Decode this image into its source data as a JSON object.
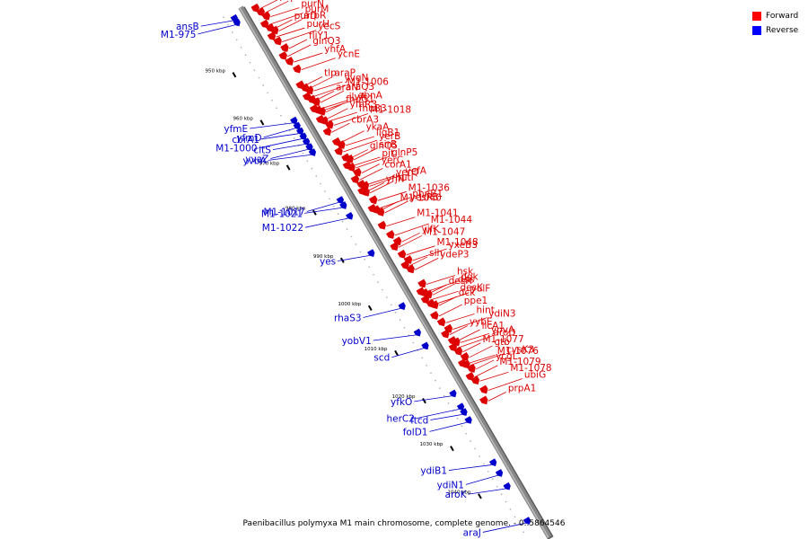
{
  "caption": "Paenibacillus polymyxa M1 main chromosome, complete genome. - 0..5864546",
  "legend": [
    {
      "label": "Forward",
      "color": "#ff0000"
    },
    {
      "label": "Reverse",
      "color": "#0000ff"
    }
  ],
  "colors": {
    "forward": "#dd0000",
    "reverse": "#0000cc",
    "backbone": "#888888"
  },
  "ticks": [
    {
      "label": "950 kbp",
      "t": 0.09
    },
    {
      "label": "960 kbp",
      "t": 0.18
    },
    {
      "label": "970 kbp",
      "t": 0.265
    },
    {
      "label": "980 kbp",
      "t": 0.35
    },
    {
      "label": "990 kbp",
      "t": 0.44
    },
    {
      "label": "1000 kbp",
      "t": 0.53
    },
    {
      "label": "1010 kbp",
      "t": 0.615
    },
    {
      "label": "1020 kbp",
      "t": 0.705
    },
    {
      "label": "1030 kbp",
      "t": 0.795
    },
    {
      "label": "1040 kbp",
      "t": 0.885
    }
  ],
  "forward_genes": [
    {
      "name": "purL",
      "t": 0.015
    },
    {
      "name": "purF",
      "t": 0.025
    },
    {
      "name": "purN",
      "t": 0.035
    },
    {
      "name": "purM",
      "t": 0.045
    },
    {
      "name": "purD",
      "t": 0.055
    },
    {
      "name": "arpR",
      "t": 0.062
    },
    {
      "name": "purH",
      "t": 0.068
    },
    {
      "name": "yecS",
      "t": 0.08
    },
    {
      "name": "fliY1",
      "t": 0.095
    },
    {
      "name": "glnQ3",
      "t": 0.105
    },
    {
      "name": "yhfA",
      "t": 0.118
    },
    {
      "name": "ycnE",
      "t": 0.135
    },
    {
      "name": "tlp",
      "t": 0.16
    },
    {
      "name": "araP",
      "t": 0.168
    },
    {
      "name": "yvgN",
      "t": 0.175
    },
    {
      "name": "M1-1006",
      "t": 0.182
    },
    {
      "name": "araN",
      "t": 0.19
    },
    {
      "name": "araQ3",
      "t": 0.197
    },
    {
      "name": "ilvA",
      "t": 0.205
    },
    {
      "name": "abnA",
      "t": 0.21
    },
    {
      "name": "fhuG1",
      "t": 0.215
    },
    {
      "name": "yfhR3",
      "t": 0.225
    },
    {
      "name": "fhuB3",
      "t": 0.23
    },
    {
      "name": "M1-1018",
      "t": 0.24
    },
    {
      "name": "cbrA3",
      "t": 0.248
    },
    {
      "name": "ykaA",
      "t": 0.27
    },
    {
      "name": "ligB1",
      "t": 0.278
    },
    {
      "name": "yerB",
      "t": 0.285
    },
    {
      "name": "glnQ5",
      "t": 0.3
    },
    {
      "name": "sirB",
      "t": 0.305
    },
    {
      "name": "pit",
      "t": 0.312
    },
    {
      "name": "glnP5",
      "t": 0.318
    },
    {
      "name": "yerC",
      "t": 0.33
    },
    {
      "name": "corA1",
      "t": 0.338
    },
    {
      "name": "yerQ",
      "t": 0.35
    },
    {
      "name": "yefA",
      "t": 0.355
    },
    {
      "name": "yfjN",
      "t": 0.36
    },
    {
      "name": "hutI",
      "t": 0.365
    },
    {
      "name": "M1-1036",
      "t": 0.382
    },
    {
      "name": "phnB1",
      "t": 0.393
    },
    {
      "name": "M1-1040",
      "t": 0.398
    },
    {
      "name": "yesR3",
      "t": 0.405
    },
    {
      "name": "M1-1041",
      "t": 0.425
    },
    {
      "name": "M1-1044",
      "t": 0.445
    },
    {
      "name": "yifK",
      "t": 0.46
    },
    {
      "name": "M1-1047",
      "t": 0.465
    },
    {
      "name": "M1-1048",
      "t": 0.482
    },
    {
      "name": "yxeB3",
      "t": 0.495
    },
    {
      "name": "slh",
      "t": 0.5
    },
    {
      "name": "ydeP3",
      "t": 0.51
    },
    {
      "name": "hsk",
      "t": 0.54
    },
    {
      "name": "dgk",
      "t": 0.55
    },
    {
      "name": "desR",
      "t": 0.555
    },
    {
      "name": "des",
      "t": 0.56
    },
    {
      "name": "desK",
      "t": 0.565
    },
    {
      "name": "yulF",
      "t": 0.575
    },
    {
      "name": "dck",
      "t": 0.58
    },
    {
      "name": "ppe1",
      "t": 0.595
    },
    {
      "name": "hint",
      "t": 0.61
    },
    {
      "name": "ydiN3",
      "t": 0.625
    },
    {
      "name": "yybE",
      "t": 0.63
    },
    {
      "name": "licA1",
      "t": 0.645
    },
    {
      "name": "ypvA",
      "t": 0.65
    },
    {
      "name": "aroD",
      "t": 0.655
    },
    {
      "name": "M1-1077",
      "t": 0.665
    },
    {
      "name": "gtb",
      "t": 0.678
    },
    {
      "name": "M1-1076",
      "t": 0.685
    },
    {
      "name": "cysK3",
      "t": 0.69
    },
    {
      "name": "ycgL",
      "t": 0.7
    },
    {
      "name": "M1-1079",
      "t": 0.71
    },
    {
      "name": "M1-1078",
      "t": 0.72
    },
    {
      "name": "ubiG",
      "t": 0.74
    },
    {
      "name": "prpA1",
      "t": 0.755
    }
  ],
  "reverse_genes": [
    {
      "name": "ansB",
      "t": 0.012
    },
    {
      "name": "M1-975",
      "t": 0.02
    },
    {
      "name": "yfmE",
      "t": 0.205
    },
    {
      "name": "yfmD",
      "t": 0.215
    },
    {
      "name": "cbrA1",
      "t": 0.225
    },
    {
      "name": "M1-1000",
      "t": 0.235
    },
    {
      "name": "citS",
      "t": 0.245
    },
    {
      "name": "yvaZ",
      "t": 0.255
    },
    {
      "name": "yvbA",
      "t": 0.265
    },
    {
      "name": "M1-1017",
      "t": 0.355
    },
    {
      "name": "M1-1021",
      "t": 0.365
    },
    {
      "name": "M1-1022",
      "t": 0.385
    },
    {
      "name": "yes",
      "t": 0.455
    },
    {
      "name": "rhaS3",
      "t": 0.555
    },
    {
      "name": "yobV1",
      "t": 0.605
    },
    {
      "name": "scd",
      "t": 0.63
    },
    {
      "name": "yfkO",
      "t": 0.72
    },
    {
      "name": "herC2",
      "t": 0.745
    },
    {
      "name": "ftcd",
      "t": 0.755
    },
    {
      "name": "folD1",
      "t": 0.77
    },
    {
      "name": "ydiB1",
      "t": 0.85
    },
    {
      "name": "ydiN1",
      "t": 0.87
    },
    {
      "name": "aroK",
      "t": 0.895
    },
    {
      "name": "araJ",
      "t": 0.96
    }
  ]
}
